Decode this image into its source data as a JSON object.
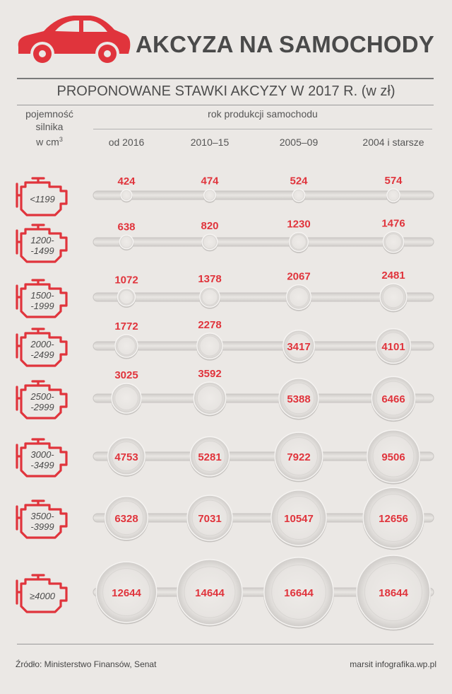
{
  "header": {
    "title": "AKCYZA NA SAMOCHODY",
    "subtitle": "PROPONOWANE STAWKI AKCYZY W 2017 R. (w zł)",
    "icon": "car-icon"
  },
  "row_header": {
    "line1": "pojemność",
    "line2": "silnika",
    "line3": "w cm",
    "sup": "3"
  },
  "column_header": {
    "title": "rok produkcji samochodu"
  },
  "chart_data": {
    "type": "table",
    "title": "PROPONOWANE STAWKI AKCYZY W 2017 R. (w zł)",
    "column_axis_label": "rok produkcji samochodu",
    "row_axis_label": "pojemność silnika w cm3",
    "columns": [
      "od 2016",
      "2010–15",
      "2005–09",
      "2004 i starsze"
    ],
    "rows": [
      {
        "label": [
          "<1199"
        ],
        "values": [
          424,
          474,
          524,
          574
        ]
      },
      {
        "label": [
          "1200-",
          "-1499"
        ],
        "values": [
          638,
          820,
          1230,
          1476
        ]
      },
      {
        "label": [
          "1500-",
          "-1999"
        ],
        "values": [
          1072,
          1378,
          2067,
          2481
        ]
      },
      {
        "label": [
          "2000-",
          "-2499"
        ],
        "values": [
          1772,
          2278,
          3417,
          4101
        ]
      },
      {
        "label": [
          "2500-",
          "-2999"
        ],
        "values": [
          3025,
          3592,
          5388,
          6466
        ]
      },
      {
        "label": [
          "3000-",
          "-3499"
        ],
        "values": [
          4753,
          5281,
          7922,
          9506
        ]
      },
      {
        "label": [
          "3500-",
          "-3999"
        ],
        "values": [
          6328,
          7031,
          10547,
          12656
        ]
      },
      {
        "label": [
          "≥4000"
        ],
        "values": [
          12644,
          14644,
          16644,
          18644
        ]
      }
    ],
    "encoding": "circle area proportional to value"
  },
  "colors": {
    "accent": "#e0343c",
    "background": "#ebe8e5",
    "text": "#4a4a4a"
  },
  "footer": {
    "source": "Źródło: Ministerstwo Finansów, Senat",
    "credit": "marsit infografika.wp.pl"
  }
}
